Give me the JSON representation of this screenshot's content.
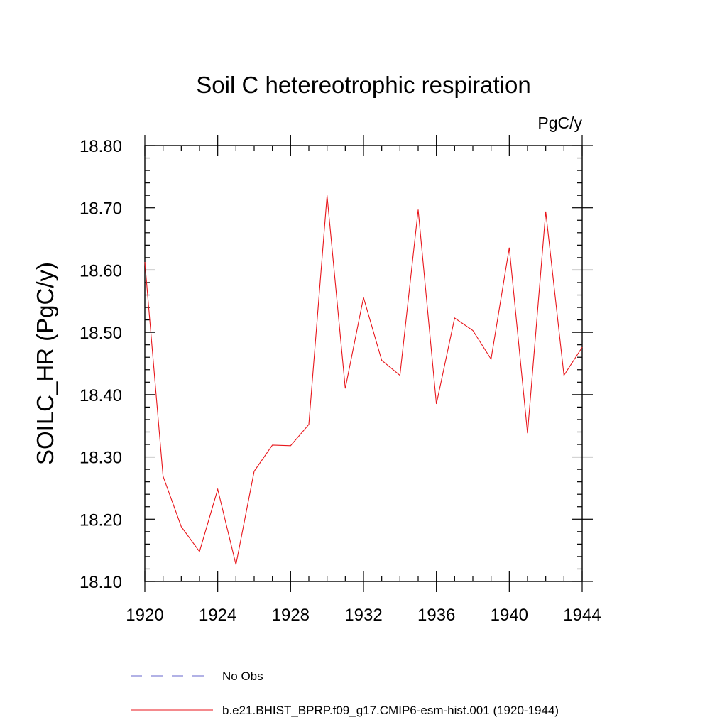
{
  "chart_data": {
    "type": "line",
    "title": "Soil C hetereotrophic respiration",
    "units_label": "PgC/y",
    "ylabel": "SOILC_HR  (PgC/y)",
    "xlabel": "",
    "xlim": [
      1920,
      1944
    ],
    "ylim": [
      18.1,
      18.8
    ],
    "x_ticks": [
      1920,
      1924,
      1928,
      1932,
      1936,
      1940,
      1944
    ],
    "x_tick_labels": [
      "1920",
      "1924",
      "1928",
      "1932",
      "1936",
      "1940",
      "1944"
    ],
    "y_ticks": [
      18.1,
      18.2,
      18.3,
      18.4,
      18.5,
      18.6,
      18.7,
      18.8
    ],
    "y_tick_labels": [
      "18.10",
      "18.20",
      "18.30",
      "18.40",
      "18.50",
      "18.60",
      "18.70",
      "18.80"
    ],
    "grid": false,
    "legend": [
      {
        "label": "No Obs",
        "color": "#6666cc",
        "style": "dashed"
      },
      {
        "label": "b.e21.BHIST_BPRP.f09_g17.CMIP6-esm-hist.001 (1920-1944)",
        "color": "#e8161b",
        "style": "solid"
      }
    ],
    "series": [
      {
        "name": "b.e21.BHIST_BPRP.f09_g17.CMIP6-esm-hist.001 (1920-1944)",
        "color": "#e8161b",
        "x": [
          1920,
          1921,
          1922,
          1923,
          1924,
          1925,
          1926,
          1927,
          1928,
          1929,
          1930,
          1931,
          1932,
          1933,
          1934,
          1935,
          1936,
          1937,
          1938,
          1939,
          1940,
          1941,
          1942,
          1943,
          1944
        ],
        "values": [
          18.613,
          18.269,
          18.188,
          18.148,
          18.248,
          18.127,
          18.277,
          18.319,
          18.318,
          18.352,
          18.72,
          18.41,
          18.556,
          18.455,
          18.431,
          18.697,
          18.385,
          18.523,
          18.503,
          18.457,
          18.636,
          18.338,
          18.694,
          18.431,
          18.476
        ]
      }
    ]
  }
}
